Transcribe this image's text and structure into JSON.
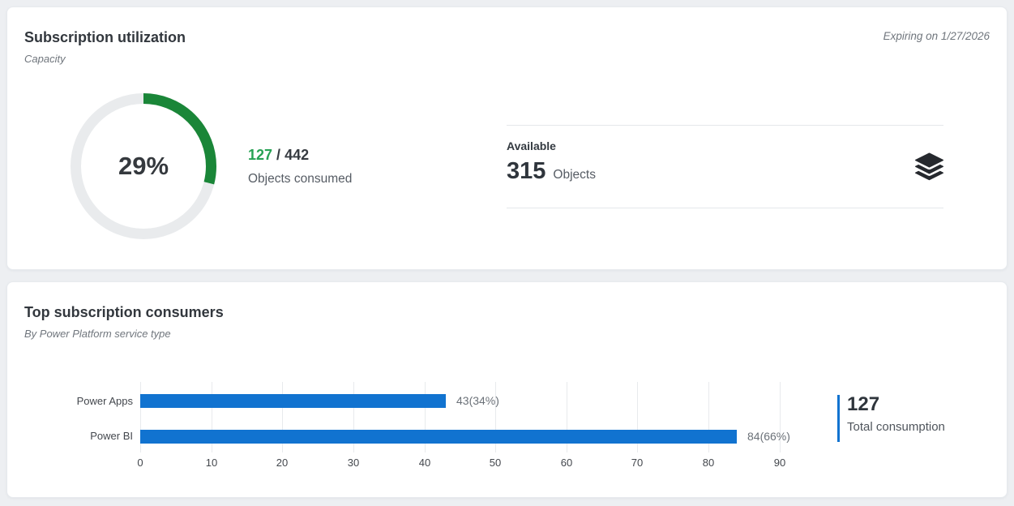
{
  "cards": {
    "utilization": {
      "title": "Subscription utilization",
      "subtitle": "Capacity",
      "expiry_note": "Expiring on 1/27/2026",
      "donut": {
        "percent": 29,
        "center_label": "29%"
      },
      "consumed": {
        "used": "127",
        "separator": " / ",
        "total": "442",
        "caption": "Objects consumed"
      },
      "available": {
        "heading": "Available",
        "value": "315",
        "unit": "Objects",
        "icon": "layers-icon"
      }
    },
    "consumers": {
      "title": "Top subscription consumers",
      "subtitle": "By Power Platform service type",
      "total": {
        "value": "127",
        "caption": "Total consumption"
      }
    }
  },
  "colors": {
    "page_background": "#edeff2",
    "card_background": "#ffffff",
    "accent_green": "#1a8638",
    "accent_green_text": "#27a254",
    "donut_track": "#e9ebed",
    "accent_blue": "#1173d0",
    "text_dark": "#32373d",
    "text_gray": "#70767d"
  },
  "chart_data": [
    {
      "type": "donut",
      "title": "Subscription utilization",
      "percent": 29,
      "center_label": "29%",
      "consumed": 127,
      "capacity_total": 442,
      "available": 315,
      "arc_color": "#1a8638",
      "track_color": "#e9ebed"
    },
    {
      "type": "bar",
      "orientation": "horizontal",
      "title": "Top subscription consumers",
      "categories": [
        "Power Apps",
        "Power BI"
      ],
      "values": [
        43,
        84
      ],
      "data_labels": [
        "43(34%)",
        "84(66%)"
      ],
      "total_consumption": 127,
      "xlim": [
        0,
        97
      ],
      "xticks": [
        0,
        10,
        20,
        30,
        40,
        50,
        60,
        70,
        80,
        90
      ],
      "bar_color": "#1173d0",
      "grid": true,
      "legend_position": "none"
    }
  ]
}
